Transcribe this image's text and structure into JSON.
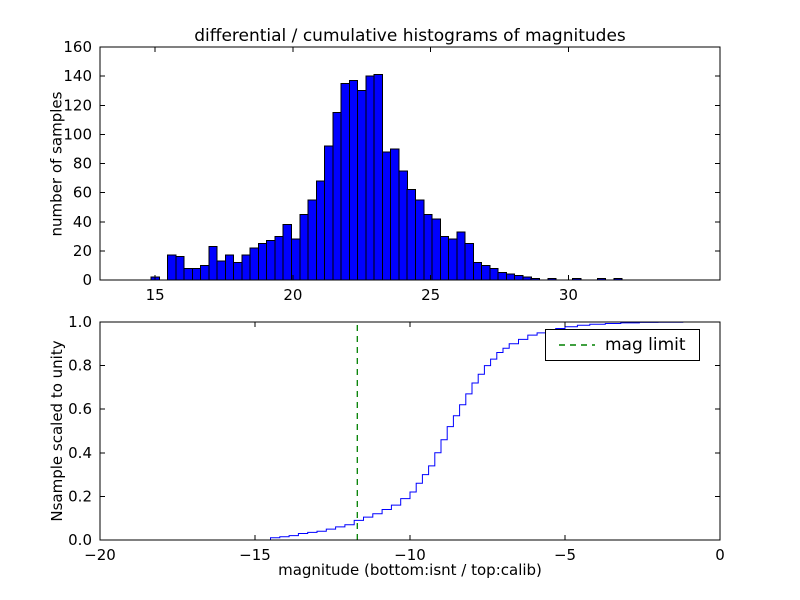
{
  "figure": {
    "background": "#ffffff",
    "axes_color": "#000000"
  },
  "legend": {
    "label": "mag limit",
    "position": "upper right"
  },
  "chart_data": [
    {
      "type": "bar",
      "title": "differential / cumulative histograms of magnitudes",
      "xlabel": "",
      "ylabel": "number of samples",
      "bar_color": "#0000ff",
      "bar_edge": "#000000",
      "bin_start": 14.85,
      "bin_width": 0.3,
      "values": [
        2,
        0,
        17,
        16,
        8,
        8,
        10,
        23,
        13,
        17,
        12,
        17,
        22,
        25,
        27,
        30,
        38,
        28,
        45,
        55,
        68,
        92,
        115,
        135,
        137,
        130,
        140,
        141,
        88,
        90,
        75,
        62,
        55,
        45,
        42,
        30,
        28,
        33,
        25,
        12,
        10,
        8,
        5,
        4,
        3,
        2,
        1,
        0,
        1,
        0,
        0,
        1,
        0,
        0,
        1,
        0,
        1,
        0
      ],
      "xlim": [
        13,
        35.5
      ],
      "ylim": [
        0,
        160
      ],
      "xticks": [
        15,
        20,
        25,
        30
      ],
      "xtick_labels": [
        "15",
        "20",
        "25",
        "30"
      ],
      "yticks": [
        0,
        20,
        40,
        60,
        80,
        100,
        120,
        140,
        160
      ],
      "ytick_labels": [
        "0",
        "20",
        "40",
        "60",
        "80",
        "100",
        "120",
        "140",
        "160"
      ],
      "grid": false
    },
    {
      "type": "line",
      "title": "",
      "xlabel": "magnitude (bottom:isnt / top:calib)",
      "ylabel": "Nsample scaled to unity",
      "line_color": "#0000ff",
      "step": true,
      "points": [
        [
          -20,
          0
        ],
        [
          -14.8,
          0
        ],
        [
          -14.5,
          0.01
        ],
        [
          -14.2,
          0.015
        ],
        [
          -13.9,
          0.02
        ],
        [
          -13.6,
          0.03
        ],
        [
          -13.3,
          0.035
        ],
        [
          -13.0,
          0.04
        ],
        [
          -12.7,
          0.05
        ],
        [
          -12.4,
          0.06
        ],
        [
          -12.1,
          0.07
        ],
        [
          -11.8,
          0.09
        ],
        [
          -11.5,
          0.105
        ],
        [
          -11.2,
          0.12
        ],
        [
          -10.9,
          0.14
        ],
        [
          -10.6,
          0.16
        ],
        [
          -10.3,
          0.19
        ],
        [
          -10.0,
          0.22
        ],
        [
          -9.8,
          0.26
        ],
        [
          -9.6,
          0.3
        ],
        [
          -9.4,
          0.34
        ],
        [
          -9.2,
          0.4
        ],
        [
          -9.0,
          0.46
        ],
        [
          -8.8,
          0.52
        ],
        [
          -8.6,
          0.57
        ],
        [
          -8.4,
          0.62
        ],
        [
          -8.2,
          0.67
        ],
        [
          -8.0,
          0.72
        ],
        [
          -7.8,
          0.76
        ],
        [
          -7.6,
          0.8
        ],
        [
          -7.4,
          0.83
        ],
        [
          -7.2,
          0.86
        ],
        [
          -7.0,
          0.88
        ],
        [
          -6.8,
          0.9
        ],
        [
          -6.5,
          0.92
        ],
        [
          -6.2,
          0.94
        ],
        [
          -5.9,
          0.95
        ],
        [
          -5.6,
          0.96
        ],
        [
          -5.3,
          0.97
        ],
        [
          -5.0,
          0.978
        ],
        [
          -4.6,
          0.985
        ],
        [
          -4.2,
          0.99
        ],
        [
          -3.7,
          0.993
        ],
        [
          -3.2,
          0.996
        ],
        [
          -2.6,
          0.998
        ],
        [
          -2.0,
          0.999
        ],
        [
          -1.2,
          1.0
        ],
        [
          0,
          1.0
        ]
      ],
      "xlim": [
        -20,
        0
      ],
      "ylim": [
        0,
        1
      ],
      "xticks": [
        -20,
        -15,
        -10,
        -5,
        0
      ],
      "xtick_labels": [
        "−20",
        "−15",
        "−10",
        "−5",
        "0"
      ],
      "yticks": [
        0,
        0.2,
        0.4,
        0.6,
        0.8,
        1.0
      ],
      "ytick_labels": [
        "0.0",
        "0.2",
        "0.4",
        "0.6",
        "0.8",
        "1.0"
      ],
      "annotations": [
        {
          "type": "vline",
          "x": -11.7,
          "color": "#008000",
          "dash": true,
          "label": "mag limit"
        }
      ],
      "grid": false
    }
  ]
}
